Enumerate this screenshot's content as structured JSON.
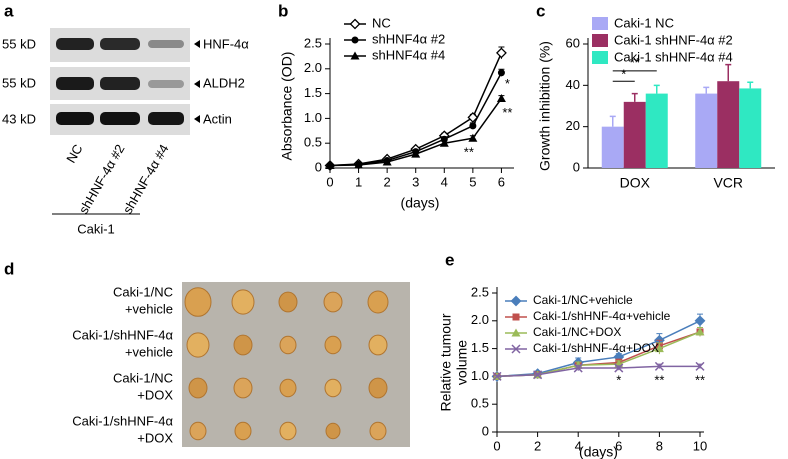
{
  "panel_a": {
    "letter": "a",
    "rows": [
      {
        "size": "55 kD",
        "label": "HNF-4α"
      },
      {
        "size": "55 kD",
        "label": "ALDH2"
      },
      {
        "size": "43 kD",
        "label": "Actin"
      }
    ],
    "lanes": [
      "NC",
      "shHNF-4α #2",
      "shHNF-4α #4"
    ],
    "group": "Caki-1"
  },
  "panel_d": {
    "letter": "d",
    "rows": [
      [
        "Caki-1/NC",
        "+vehicle"
      ],
      [
        "Caki-1/shHNF-4α",
        "+vehicle"
      ],
      [
        "Caki-1/NC",
        "+DOX"
      ],
      [
        "Caki-1/shHNF-4α",
        "+DOX"
      ]
    ]
  },
  "chart_data": [
    {
      "type": "line",
      "letter": "b",
      "xlabel": "(days)",
      "ylabel": "Absorbance (OD)",
      "x": [
        0,
        1,
        2,
        3,
        4,
        5,
        6
      ],
      "xlim": [
        0,
        6.3
      ],
      "xticks": [
        0,
        1,
        2,
        3,
        4,
        5,
        6
      ],
      "ylim": [
        0,
        2.5
      ],
      "yticks": [
        0,
        {
          "value": 0.5,
          "label": "0.5"
        },
        {
          "value": 1,
          "label": "1.0"
        },
        {
          "value": 1.5,
          "label": "1.5"
        },
        {
          "value": 2,
          "label": "2.0"
        },
        {
          "value": 2.5,
          "label": "2.5"
        }
      ],
      "series": [
        {
          "name": "NC",
          "color": "#000000",
          "marker": "diamond-open",
          "values": [
            0.05,
            0.08,
            0.18,
            0.38,
            0.65,
            1.02,
            2.32
          ],
          "errors": [
            0.01,
            0.01,
            0.02,
            0.03,
            0.05,
            0.06,
            0.12
          ]
        },
        {
          "name": "shHNF4α #2",
          "color": "#000000",
          "marker": "circle",
          "values": [
            0.05,
            0.07,
            0.15,
            0.33,
            0.58,
            0.85,
            1.92
          ],
          "errors": [
            0.01,
            0.01,
            0.02,
            0.03,
            0.05,
            0.06,
            0.07
          ]
        },
        {
          "name": "shHNF4α #4",
          "color": "#000000",
          "marker": "triangle",
          "values": [
            0.05,
            0.06,
            0.12,
            0.28,
            0.5,
            0.6,
            1.4
          ],
          "errors": [
            0.01,
            0.01,
            0.02,
            0.03,
            0.04,
            0.05,
            0.06
          ]
        }
      ],
      "annotations": [
        "**",
        "*",
        "**"
      ]
    },
    {
      "type": "bar",
      "letter": "c",
      "ylabel": "Growth inhibition (%)",
      "categories": [
        "DOX",
        "VCR"
      ],
      "ylim": [
        0,
        60
      ],
      "yticks": [
        0,
        20,
        40,
        60
      ],
      "series": [
        {
          "name": "Caki-1 NC",
          "color": "#a9a9f5",
          "values": [
            20,
            36
          ],
          "errors": [
            5,
            3
          ]
        },
        {
          "name": "Caki-1 shHNF-4α #2",
          "color": "#9b2f62",
          "values": [
            32,
            42
          ],
          "errors": [
            4,
            8
          ]
        },
        {
          "name": "Caki-1 shHNF-4α #4",
          "color": "#2fe8c2",
          "values": [
            36,
            38.5
          ],
          "errors": [
            4,
            3
          ]
        }
      ],
      "annotations": [
        "*",
        "**"
      ]
    },
    {
      "type": "line",
      "letter": "e",
      "xlabel": "(days)",
      "ylabel": [
        "Relative tumour",
        "volume"
      ],
      "x": [
        0,
        2,
        4,
        6,
        8,
        10
      ],
      "xlim": [
        0,
        10
      ],
      "xticks": [
        0,
        2,
        4,
        6,
        8,
        10
      ],
      "ylim": [
        0,
        2.5
      ],
      "yticks": [
        0,
        {
          "value": 0.5,
          "label": "0.5"
        },
        {
          "value": 1,
          "label": "1.0"
        },
        {
          "value": 1.5,
          "label": "1.5"
        },
        {
          "value": 2,
          "label": "2.0"
        },
        {
          "value": 2.5,
          "label": "2.5"
        }
      ],
      "series": [
        {
          "name": "Caki-1/NC+vehicle",
          "color": "#4a7ebb",
          "marker": "diamond",
          "values": [
            1,
            1.05,
            1.25,
            1.35,
            1.65,
            2
          ],
          "errors": [
            0.02,
            0.03,
            0.08,
            0.06,
            0.12,
            0.12
          ]
        },
        {
          "name": "Caki-1/shHNF-4α+vehicle",
          "color": "#c0504d",
          "marker": "square",
          "values": [
            1,
            1.03,
            1.2,
            1.25,
            1.55,
            1.8
          ],
          "errors": [
            0.02,
            0.03,
            0.06,
            0.06,
            0.1,
            0.08
          ]
        },
        {
          "name": "Caki-1/NC+DOX",
          "color": "#9bbb59",
          "marker": "triangle",
          "values": [
            1,
            1.03,
            1.2,
            1.22,
            1.5,
            1.8
          ],
          "errors": [
            0.02,
            0.03,
            0.06,
            0.06,
            0.1,
            0.08
          ]
        },
        {
          "name": "Caki-1/shHNF-4α+DOX",
          "color": "#8064a2",
          "marker": "x",
          "values": [
            1,
            1.03,
            1.15,
            1.15,
            1.18,
            1.18
          ],
          "errors": [
            0.02,
            0.03,
            0.05,
            0.04,
            0.04,
            0.04
          ]
        }
      ],
      "annotations": [
        "*",
        "**",
        "**"
      ]
    }
  ]
}
